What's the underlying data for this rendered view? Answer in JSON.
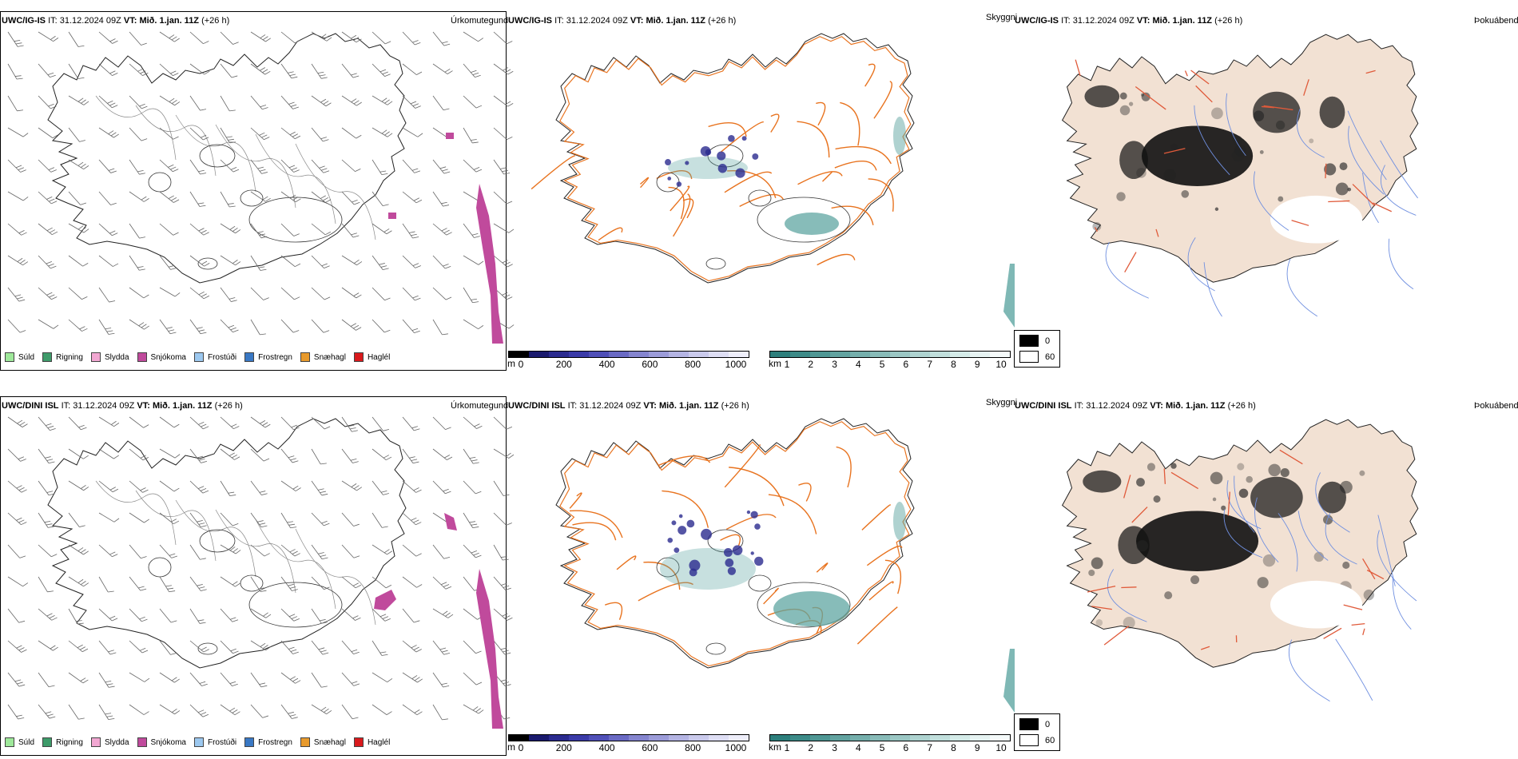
{
  "rows": [
    {
      "model": "UWC/IG-IS",
      "it_label": "IT:",
      "it_value": "31.12.2024 09Z",
      "vt_label": "VT:",
      "vt_value": "Mið. 1.jan. 11Z",
      "lead": "(+26 h)",
      "panel1_title": "Úrkomutegund",
      "panel2_title": "Skyggni",
      "panel3_title": "Þokuábendi"
    },
    {
      "model": "UWC/DINI ISL",
      "it_label": "IT:",
      "it_value": "31.12.2024 09Z",
      "vt_label": "VT:",
      "vt_value": "Mið. 1.jan. 11Z",
      "lead": "(+26 h)",
      "panel1_title": "Úrkomutegund",
      "panel2_title": "Skyggni",
      "panel3_title": "Þokuábendi"
    }
  ],
  "precip_legend": [
    {
      "label": "Súld",
      "color": "#9ee89a"
    },
    {
      "label": "Rigning",
      "color": "#3e9b6a"
    },
    {
      "label": "Slydda",
      "color": "#f2a7d2"
    },
    {
      "label": "Snjókoma",
      "color": "#c04a9c"
    },
    {
      "label": "Frostúði",
      "color": "#9cc8ef"
    },
    {
      "label": "Frostregn",
      "color": "#3978c4"
    },
    {
      "label": "Snæhagl",
      "color": "#e89a2c"
    },
    {
      "label": "Haglél",
      "color": "#d9191c"
    }
  ],
  "cloudbase_bar": {
    "unit": "m",
    "ticks": [
      "0",
      "200",
      "400",
      "600",
      "800",
      "1000"
    ],
    "colors": [
      "#000000",
      "#1a1a6e",
      "#2b2b8f",
      "#3b3ba8",
      "#5050b8",
      "#6a6ac4",
      "#8585cf",
      "#9c9cd9",
      "#b4b4e3",
      "#cacaec",
      "#dedef4",
      "#eeeefa"
    ]
  },
  "visibility_bar": {
    "unit": "km",
    "ticks": [
      "1",
      "2",
      "3",
      "4",
      "5",
      "6",
      "7",
      "8",
      "9",
      "10"
    ],
    "colors": [
      "#2d7f7c",
      "#3d8b88",
      "#4f9794",
      "#62a3a0",
      "#75afac",
      "#88bbb8",
      "#9bc7c4",
      "#aed3d0",
      "#c1dfdc",
      "#d4ebe8",
      "#e6f3f2",
      "#f5fafa"
    ]
  },
  "fog_legend": [
    {
      "label": "0",
      "color": "#000000"
    },
    {
      "label": "60",
      "color": "#ffffff"
    }
  ],
  "colors": {
    "land_fog": "#f2e1d3",
    "roads": "#e8731f",
    "rivers": "#6f8fe0",
    "snow": "#c04a9c",
    "cloud_low": "#2b2b8f",
    "vis": "#5fa6a2"
  }
}
